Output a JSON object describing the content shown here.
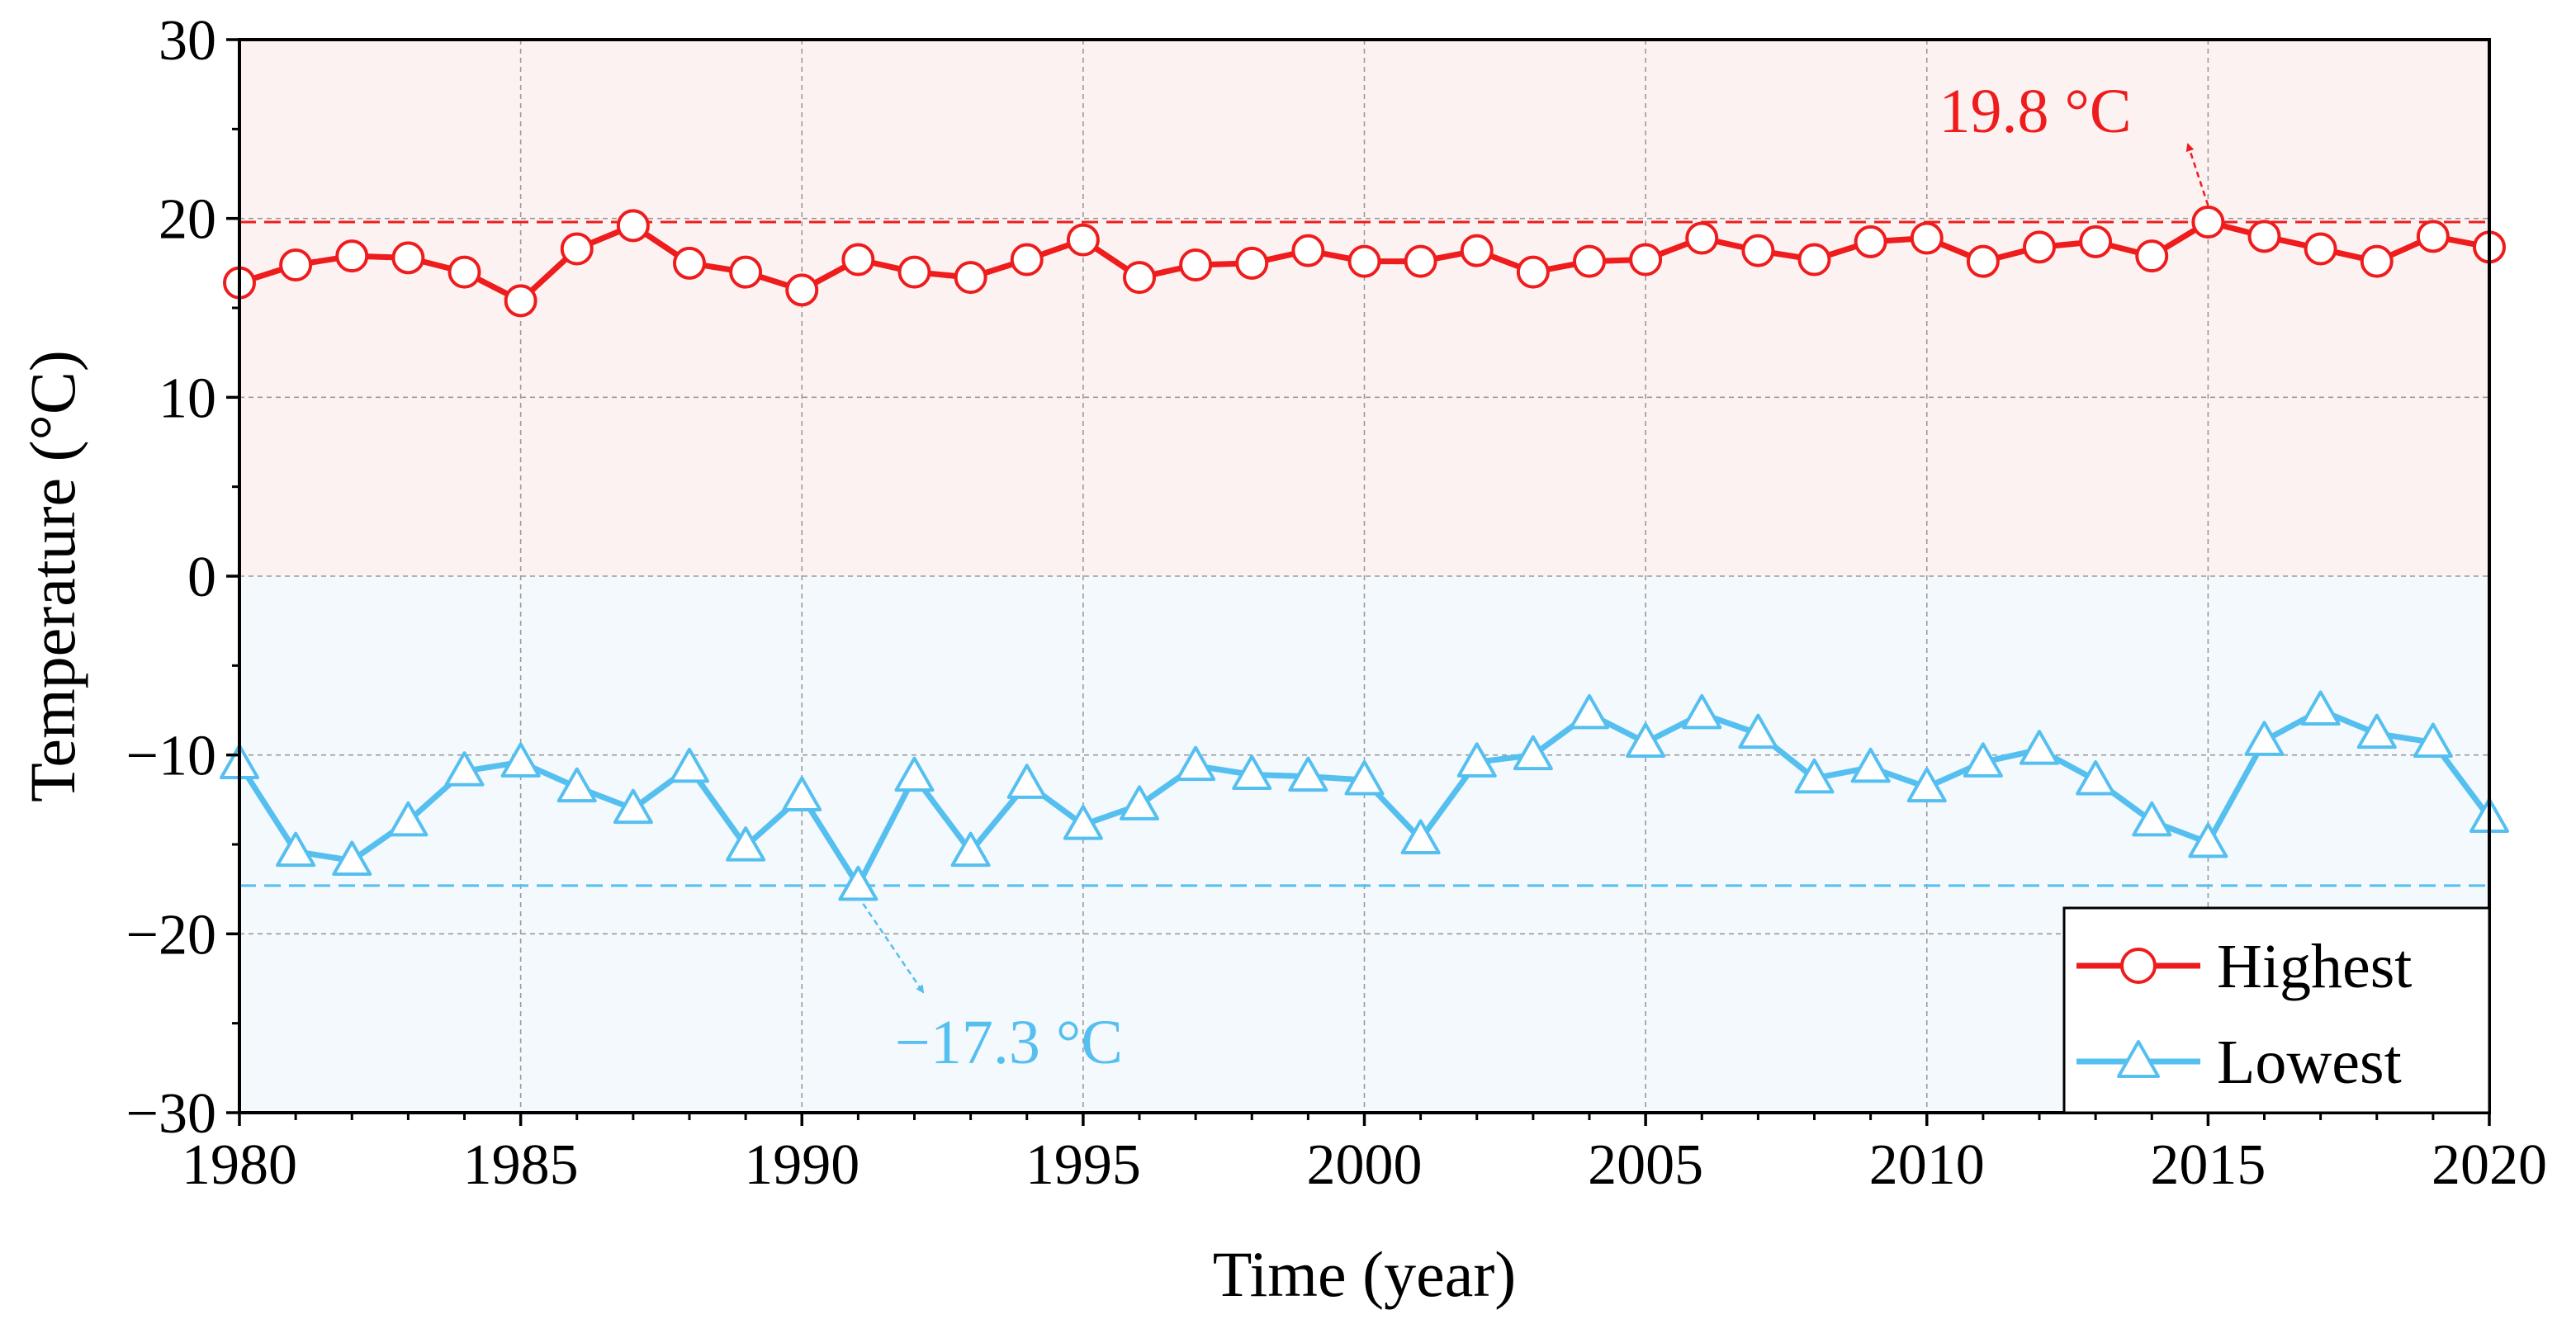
{
  "chart_data": {
    "type": "line",
    "title": "",
    "xlabel": "Time (year)",
    "ylabel": "Temperature (°C)",
    "xlim": [
      1980,
      2020
    ],
    "ylim": [
      -30,
      30
    ],
    "xticks": [
      1980,
      1985,
      1990,
      1995,
      2000,
      2005,
      2010,
      2015,
      2020
    ],
    "yticks": [
      -30,
      -20,
      -10,
      0,
      10,
      20,
      30
    ],
    "xtick_labels": [
      "1980",
      "1985",
      "1990",
      "1995",
      "2000",
      "2005",
      "2010",
      "2015",
      "2020"
    ],
    "ytick_labels": [
      "−30",
      "−20",
      "−10",
      "0",
      "10",
      "20",
      "30"
    ],
    "grid": true,
    "legend_position": "bottom-right",
    "background_bands": [
      {
        "from": 0,
        "to": 30,
        "color": "#fdf2f2"
      },
      {
        "from": -30,
        "to": 0,
        "color": "#f3f9fc"
      }
    ],
    "x": [
      1980,
      1981,
      1982,
      1983,
      1984,
      1985,
      1986,
      1987,
      1988,
      1989,
      1990,
      1991,
      1992,
      1993,
      1994,
      1995,
      1996,
      1997,
      1998,
      1999,
      2000,
      2001,
      2002,
      2003,
      2004,
      2005,
      2006,
      2007,
      2008,
      2009,
      2010,
      2011,
      2012,
      2013,
      2014,
      2015,
      2016,
      2017,
      2018,
      2019,
      2020
    ],
    "series": [
      {
        "name": "Highest",
        "color": "#ee1c1c",
        "marker": "circle",
        "values": [
          16.4,
          17.4,
          17.9,
          17.8,
          17.0,
          15.4,
          18.3,
          19.6,
          17.5,
          17.0,
          16.0,
          17.7,
          17.0,
          16.7,
          17.7,
          18.8,
          16.7,
          17.4,
          17.5,
          18.2,
          17.6,
          17.6,
          18.2,
          17.0,
          17.6,
          17.7,
          18.9,
          18.2,
          17.7,
          18.7,
          18.9,
          17.6,
          18.4,
          18.7,
          17.9,
          19.8,
          19.0,
          18.3,
          17.6,
          19.0,
          18.4
        ]
      },
      {
        "name": "Lowest",
        "color": "#55bff0",
        "marker": "triangle",
        "values": [
          -10.5,
          -15.4,
          -15.9,
          -13.7,
          -10.9,
          -10.4,
          -11.8,
          -13.0,
          -10.7,
          -15.1,
          -12.3,
          -17.3,
          -11.2,
          -15.4,
          -11.6,
          -13.9,
          -12.8,
          -10.6,
          -11.1,
          -11.2,
          -11.4,
          -14.7,
          -10.4,
          -10.0,
          -7.7,
          -9.3,
          -7.7,
          -8.8,
          -11.3,
          -10.7,
          -11.8,
          -10.4,
          -9.7,
          -11.4,
          -13.7,
          -14.9,
          -9.2,
          -7.5,
          -8.8,
          -9.3,
          -13.5
        ]
      }
    ],
    "reference_lines": [
      {
        "name": "max-line",
        "value": 19.8,
        "color": "#ee1c1c"
      },
      {
        "name": "min-line",
        "value": -17.3,
        "color": "#55bff0"
      }
    ],
    "annotations": [
      {
        "name": "max-annotation",
        "text": "19.8 °C",
        "point_x": 2015,
        "point_y": 19.8,
        "color": "#ee1c1c"
      },
      {
        "name": "min-annotation",
        "text": "−17.3 °C",
        "point_x": 1991,
        "point_y": -17.3,
        "color": "#55bff0"
      }
    ]
  }
}
